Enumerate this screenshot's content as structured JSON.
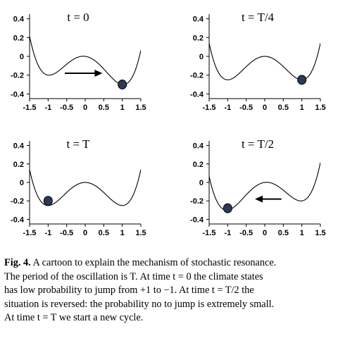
{
  "chart_data": [
    {
      "type": "line",
      "panel_label": "t = 0",
      "xlim": [
        -1.5,
        1.5
      ],
      "ylim": [
        -0.45,
        0.45
      ],
      "xticks": [
        "-1.5",
        "-1",
        "-0.5",
        "0",
        "0.5",
        "1",
        "1.5"
      ],
      "yticks": [
        "0.4",
        "0.2",
        "0",
        "-0.2",
        "-0.4"
      ],
      "curve": "V(x) = x^4/4 - x^2/2 - 0.05x",
      "tilt": 0.05,
      "ball": {
        "x": 1.0,
        "y": -0.3
      },
      "arrow": {
        "from": [
          -0.55,
          -0.18
        ],
        "to": [
          0.35,
          -0.18
        ],
        "direction": "right"
      }
    },
    {
      "type": "line",
      "panel_label": "t = T/4",
      "xlim": [
        -1.5,
        1.5
      ],
      "ylim": [
        -0.45,
        0.45
      ],
      "xticks": [
        "-1.5",
        "-1",
        "-0.5",
        "0",
        "0.5",
        "1",
        "1.5"
      ],
      "yticks": [
        "0.4",
        "0.2",
        "0",
        "-0.2",
        "-0.4"
      ],
      "curve": "V(x) = x^4/4 - x^2/2",
      "tilt": 0.0,
      "ball": {
        "x": 1.0,
        "y": -0.25
      },
      "arrow": null
    },
    {
      "type": "line",
      "panel_label": "t = T",
      "xlim": [
        -1.5,
        1.5
      ],
      "ylim": [
        -0.45,
        0.45
      ],
      "xticks": [
        "-1.5",
        "-1",
        "-0.5",
        "0",
        "0.5",
        "1",
        "1.5"
      ],
      "yticks": [
        "0.4",
        "0.2",
        "0",
        "-0.2",
        "-0.4"
      ],
      "curve": "V(x) = x^4/4 - x^2/2",
      "tilt": 0.0,
      "ball": {
        "x": -1.0,
        "y": -0.2
      },
      "arrow": null
    },
    {
      "type": "line",
      "panel_label": "t = T/2",
      "xlim": [
        -1.5,
        1.5
      ],
      "ylim": [
        -0.45,
        0.45
      ],
      "xticks": [
        "-1.5",
        "-1",
        "-0.5",
        "0",
        "0.5",
        "1",
        "1.5"
      ],
      "yticks": [
        "0.4",
        "0.2",
        "0",
        "-0.2",
        "-0.4"
      ],
      "curve": "V(x) = x^4/4 - x^2/2 + 0.05x",
      "tilt": -0.05,
      "ball": {
        "x": -1.0,
        "y": -0.28
      },
      "arrow": {
        "from": [
          0.45,
          -0.18
        ],
        "to": [
          -0.15,
          -0.18
        ],
        "direction": "left"
      }
    }
  ],
  "caption": {
    "label": "Fig. 4.",
    "lines": [
      " A cartoon to explain the mechanism of stochastic resonance.",
      "The period of the oscillation is T. At time t = 0 the climate states",
      "has low probability to jump from +1 to −1. At time t = T/2 the",
      "situation is reversed: the probability no to jump is extremely small.",
      "At time t = T we start a new cycle."
    ]
  },
  "colors": {
    "curve": "#000000",
    "ball_fill": "#2b3a55",
    "ball_edge": "#000000",
    "text": "#000000"
  }
}
